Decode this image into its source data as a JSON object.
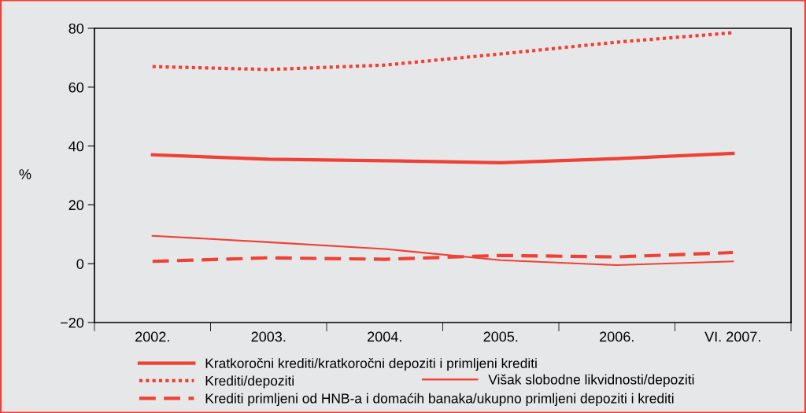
{
  "chart_data": {
    "type": "line",
    "ylabel": "%",
    "categories": [
      "2002.",
      "2003.",
      "2004.",
      "2005.",
      "2006.",
      "VI. 2007."
    ],
    "ylim": [
      -20,
      80
    ],
    "yticks": [
      {
        "value": -20,
        "label": "−20"
      },
      0,
      20,
      40,
      60,
      80
    ],
    "grid": false,
    "legend": "bottom",
    "marker": "none",
    "series": [
      {
        "name": "Kratkoročni krediti/kratkoročni depoziti i primljeni krediti",
        "color": "#ef4136",
        "line_style": "solid",
        "values": [
          37,
          35.5,
          35,
          34.3,
          35.7,
          37.5
        ]
      },
      {
        "name": "Krediti/depoziti",
        "color": "#ef4136",
        "line_style": "dotted",
        "values": [
          67,
          66,
          67.5,
          71.3,
          75.3,
          78.5
        ]
      },
      {
        "name": "Višak slobodne likvidnosti/depoziti",
        "color": "#ef4136",
        "line_style": "solid",
        "values": [
          9.5,
          7.3,
          5,
          1.2,
          -0.5,
          0.8
        ]
      },
      {
        "name": "Krediti primljeni od HNB-a i domaćih banaka/ukupno primljeni depoziti i krediti",
        "color": "#ef4136",
        "line_style": "dashed",
        "values": [
          0.8,
          2,
          1.5,
          2.8,
          2.3,
          3.8
        ]
      }
    ]
  }
}
